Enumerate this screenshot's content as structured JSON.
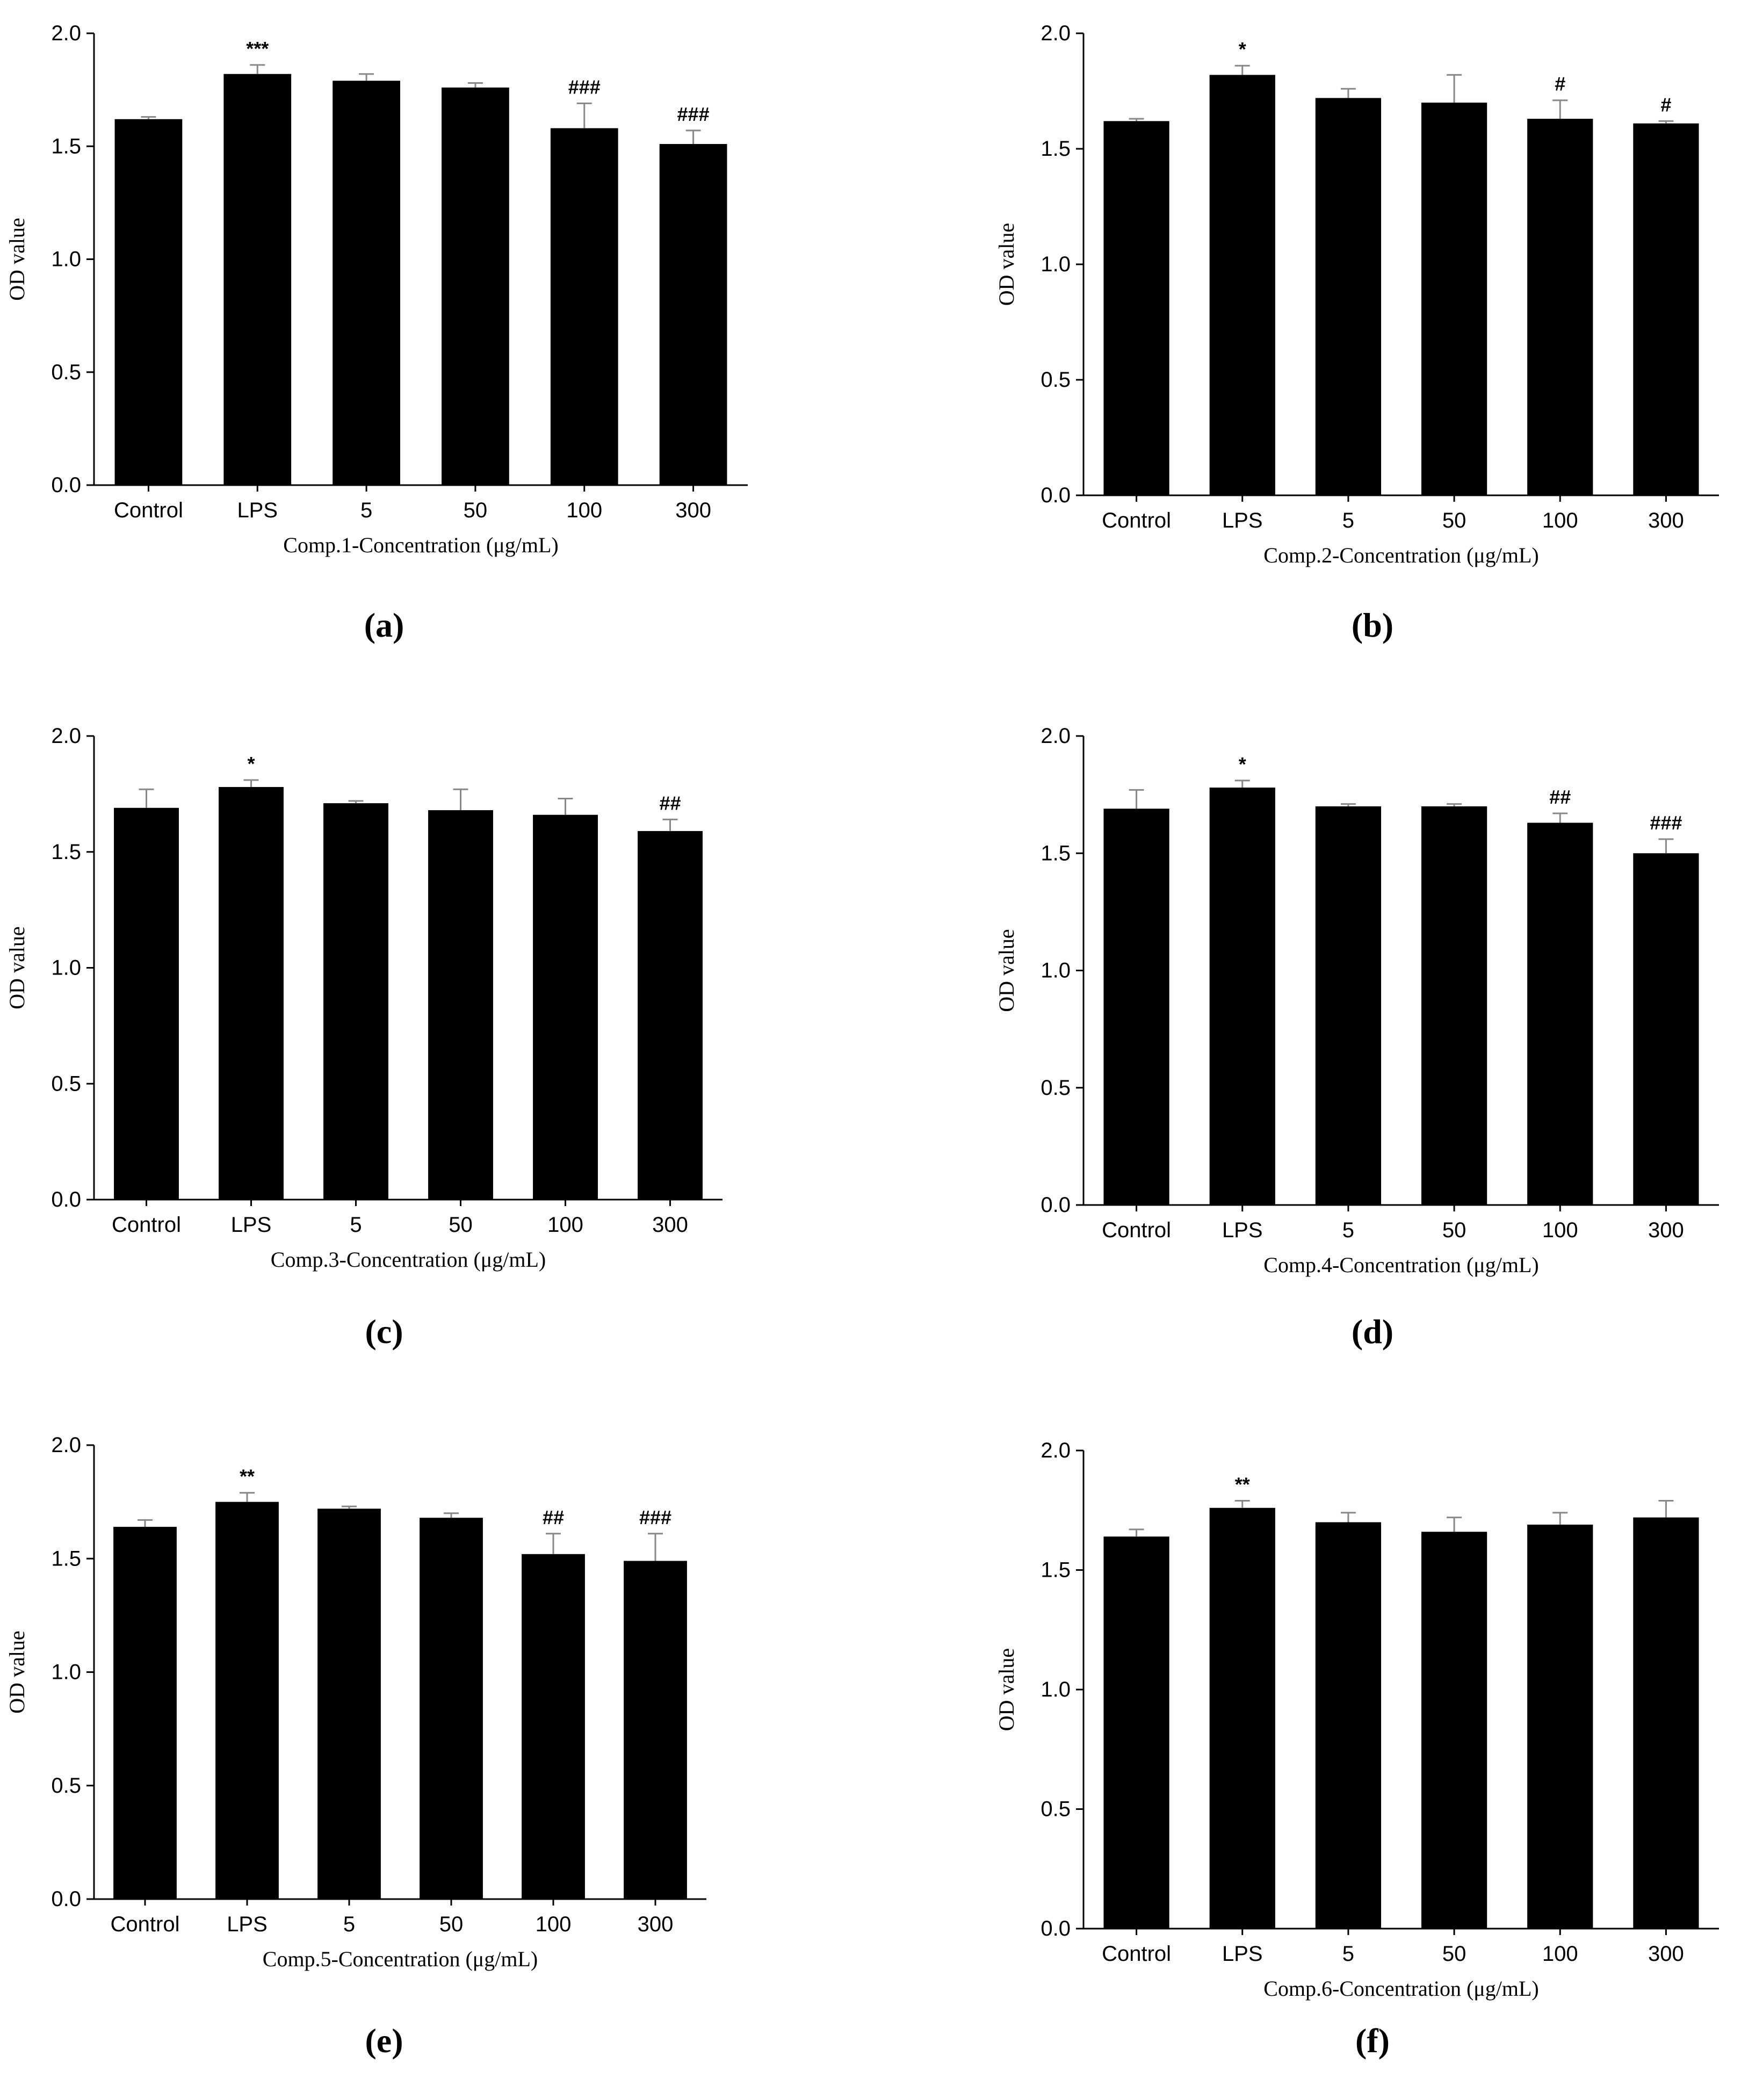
{
  "chart_data": [
    {
      "panel_label": "(a)",
      "type": "bar",
      "categories": [
        "Control",
        "LPS",
        "5",
        "50",
        "100",
        "300"
      ],
      "values": [
        1.62,
        1.82,
        1.79,
        1.76,
        1.58,
        1.51
      ],
      "error": [
        0.01,
        0.04,
        0.03,
        0.02,
        0.11,
        0.06
      ],
      "significance": [
        "",
        "***",
        "",
        "",
        "###",
        "###"
      ],
      "xlabel": "Comp.1-Concentration (μg/mL)",
      "ylabel": "OD value",
      "ylim": [
        0,
        2.0
      ],
      "yticks": [
        "0.0",
        "0.5",
        "1.0",
        "1.5",
        "2.0"
      ]
    },
    {
      "panel_label": "(b)",
      "type": "bar",
      "categories": [
        "Control",
        "LPS",
        "5",
        "50",
        "100",
        "300"
      ],
      "values": [
        1.62,
        1.82,
        1.72,
        1.7,
        1.63,
        1.61
      ],
      "error": [
        0.01,
        0.04,
        0.04,
        0.12,
        0.08,
        0.01
      ],
      "significance": [
        "",
        "*",
        "",
        "",
        "#",
        "#"
      ],
      "xlabel": "Comp.2-Concentration (μg/mL)",
      "ylabel": "OD value",
      "ylim": [
        0,
        2.0
      ],
      "yticks": [
        "0.0",
        "0.5",
        "1.0",
        "1.5",
        "2.0"
      ]
    },
    {
      "panel_label": "(c)",
      "type": "bar",
      "categories": [
        "Control",
        "LPS",
        "5",
        "50",
        "100",
        "300"
      ],
      "values": [
        1.69,
        1.78,
        1.71,
        1.68,
        1.66,
        1.59
      ],
      "error": [
        0.08,
        0.03,
        0.01,
        0.09,
        0.07,
        0.05
      ],
      "significance": [
        "",
        "*",
        "",
        "",
        "",
        "##"
      ],
      "xlabel": "Comp.3-Concentration (μg/mL)",
      "ylabel": "OD value",
      "ylim": [
        0,
        2.0
      ],
      "yticks": [
        "0.0",
        "0.5",
        "1.0",
        "1.5",
        "2.0"
      ]
    },
    {
      "panel_label": "(d)",
      "type": "bar",
      "categories": [
        "Control",
        "LPS",
        "5",
        "50",
        "100",
        "300"
      ],
      "values": [
        1.69,
        1.78,
        1.7,
        1.7,
        1.63,
        1.5
      ],
      "error": [
        0.08,
        0.03,
        0.01,
        0.01,
        0.04,
        0.06
      ],
      "significance": [
        "",
        "*",
        "",
        "",
        "##",
        "###"
      ],
      "xlabel": "Comp.4-Concentration (μg/mL)",
      "ylabel": "OD value",
      "ylim": [
        0,
        2.0
      ],
      "yticks": [
        "0.0",
        "0.5",
        "1.0",
        "1.5",
        "2.0"
      ]
    },
    {
      "panel_label": "(e)",
      "type": "bar",
      "categories": [
        "Control",
        "LPS",
        "5",
        "50",
        "100",
        "300"
      ],
      "values": [
        1.64,
        1.75,
        1.72,
        1.68,
        1.52,
        1.49
      ],
      "error": [
        0.03,
        0.04,
        0.01,
        0.02,
        0.09,
        0.12
      ],
      "significance": [
        "",
        "**",
        "",
        "",
        "##",
        "###"
      ],
      "xlabel": "Comp.5-Concentration (μg/mL)",
      "ylabel": "OD value",
      "ylim": [
        0,
        2.0
      ],
      "yticks": [
        "0.0",
        "0.5",
        "1.0",
        "1.5",
        "2.0"
      ]
    },
    {
      "panel_label": "(f)",
      "type": "bar",
      "categories": [
        "Control",
        "LPS",
        "5",
        "50",
        "100",
        "300"
      ],
      "values": [
        1.64,
        1.76,
        1.7,
        1.66,
        1.69,
        1.72
      ],
      "error": [
        0.03,
        0.03,
        0.04,
        0.06,
        0.05,
        0.07
      ],
      "significance": [
        "",
        "**",
        "",
        "",
        "",
        ""
      ],
      "xlabel": "Comp.6-Concentration (μg/mL)",
      "ylabel": "OD value",
      "ylim": [
        0,
        2.0
      ],
      "yticks": [
        "0.0",
        "0.5",
        "1.0",
        "1.5",
        "2.0"
      ]
    }
  ],
  "colors": {
    "bar": "#000000",
    "axis": "#000000",
    "background": "#ffffff"
  }
}
